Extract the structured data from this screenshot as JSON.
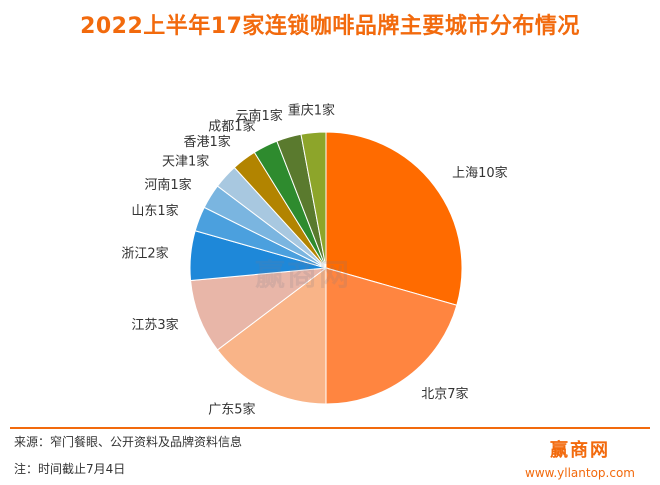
{
  "chart_data": {
    "type": "pie",
    "title": "2022上半年17家连锁咖啡品牌主要城市分布情况",
    "labels": [
      "上海10家",
      "北京7家",
      "广东5家",
      "江苏3家",
      "浙江2家",
      "山东1家",
      "河南1家",
      "天津1家",
      "香港1家",
      "成都1家",
      "云南1家",
      "重庆1家"
    ],
    "values": [
      10,
      7,
      5,
      3,
      2,
      1,
      1,
      1,
      1,
      1,
      1,
      1
    ],
    "colors": [
      "#ff6b00",
      "#ff8540",
      "#f9b488",
      "#e8b6a8",
      "#1e88d9",
      "#4ba0de",
      "#7ab5e0",
      "#a8c8e0",
      "#b28400",
      "#2e8b2e",
      "#5a7a2e",
      "#8da52a"
    ],
    "start_angle": "12 o'clock",
    "direction": "clockwise"
  },
  "footer": {
    "source": "来源：窄门餐眼、公开资料及品牌资料信息",
    "note": "注：时间截止7月4日"
  },
  "brand": {
    "name": "赢商网",
    "url": "www.yllantop.com"
  }
}
